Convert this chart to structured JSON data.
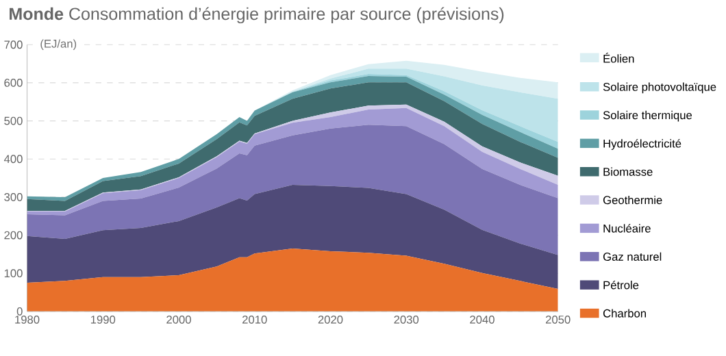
{
  "chart_data": {
    "type": "area",
    "stacked": true,
    "title": "**Monde** Consommation d’énergie primaire par source (prévisions)",
    "ylabel": "(EJ/an)",
    "x": [
      1980,
      1985,
      1990,
      1995,
      2000,
      2005,
      2008,
      2009,
      2010,
      2015,
      2020,
      2025,
      2030,
      2035,
      2040,
      2045,
      2050
    ],
    "xlim": [
      1980,
      2050
    ],
    "xticks": [
      1980,
      1990,
      2000,
      2010,
      2020,
      2030,
      2040,
      2050
    ],
    "ylim": [
      0,
      700
    ],
    "yticks": [
      0,
      100,
      200,
      300,
      400,
      500,
      600,
      700
    ],
    "grid": "y",
    "legend": "right",
    "series": [
      {
        "name": "Charbon",
        "color": "#e8702a",
        "values": [
          75,
          80,
          90,
          90,
          95,
          118,
          142,
          142,
          152,
          165,
          158,
          154,
          146,
          125,
          101,
          80,
          59
        ]
      },
      {
        "name": "Pétrole",
        "color": "#4f4a78",
        "values": [
          123,
          110,
          123,
          129,
          142,
          155,
          155,
          149,
          156,
          167,
          171,
          170,
          162,
          142,
          113,
          98,
          89
        ]
      },
      {
        "name": "Gaz naturel",
        "color": "#7c74b4",
        "values": [
          57,
          62,
          77,
          77,
          88,
          102,
          118,
          119,
          127,
          130,
          151,
          166,
          178,
          172,
          160,
          154,
          149
        ]
      },
      {
        "name": "Nucléaire",
        "color": "#a29bd4",
        "values": [
          7,
          10,
          20,
          22,
          25,
          30,
          31,
          30,
          30,
          33,
          30,
          40,
          48,
          47,
          45,
          42,
          35
        ]
      },
      {
        "name": "Geothermie",
        "color": "#cfcbe8",
        "values": [
          2,
          2,
          2,
          2,
          2,
          2,
          2,
          2,
          2,
          5,
          12,
          10,
          9,
          12,
          14,
          17,
          24
        ]
      },
      {
        "name": "Biomasse",
        "color": "#3f6b6e",
        "values": [
          31,
          26,
          30,
          35,
          36,
          45,
          48,
          46,
          46,
          58,
          63,
          61,
          58,
          54,
          59,
          54,
          47
        ]
      },
      {
        "name": "Hydroélectricité",
        "color": "#5f9ea5",
        "values": [
          7,
          10,
          8,
          11,
          12,
          13,
          14,
          12,
          14,
          17,
          16,
          17,
          15,
          17,
          24,
          26,
          24
        ]
      },
      {
        "name": "Solaire thermique",
        "color": "#9dd3dc",
        "values": [
          0,
          0,
          0,
          0,
          0,
          0,
          0,
          0,
          0,
          1,
          5,
          5,
          4,
          9,
          12,
          15,
          18
        ]
      },
      {
        "name": "Solaire photovoltaïque",
        "color": "#bde3ea",
        "values": [
          0,
          0,
          0,
          0,
          0,
          0,
          0,
          0,
          0,
          1,
          5,
          14,
          17,
          39,
          65,
          89,
          113
        ]
      },
      {
        "name": "Éolien",
        "color": "#dbeff3",
        "values": [
          0,
          0,
          0,
          0,
          0,
          0,
          0,
          0,
          0,
          3,
          9,
          12,
          21,
          30,
          36,
          38,
          43
        ]
      }
    ]
  }
}
